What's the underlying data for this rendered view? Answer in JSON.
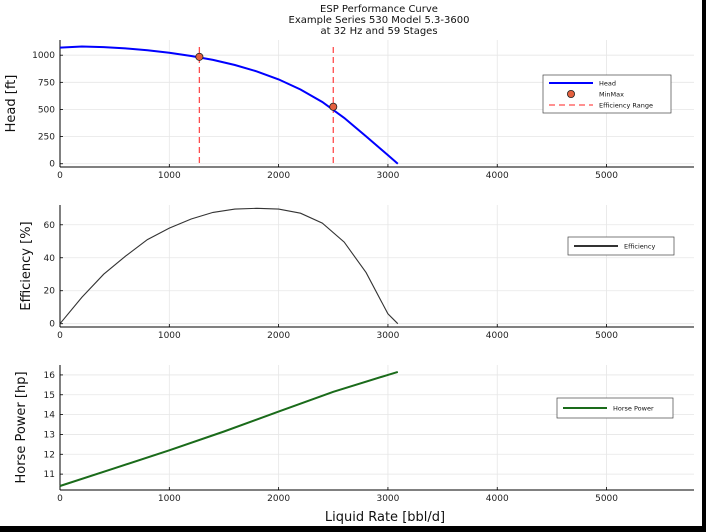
{
  "title_lines": [
    "ESP Performance Curve",
    "Example Series 530 Model 5.3-3600",
    "at 32 Hz and 59 Stages"
  ],
  "chart_data": [
    {
      "type": "line",
      "ylabel": "Head [ft]",
      "xlim": [
        0,
        5800
      ],
      "ylim": [
        -30,
        1140
      ],
      "xticks": [
        0,
        1000,
        2000,
        3000,
        4000,
        5000
      ],
      "yticks": [
        0,
        250,
        500,
        750,
        1000
      ],
      "grid": true,
      "legend": "right",
      "series": [
        {
          "name": "Head",
          "color": "#0000ff",
          "x": [
            0,
            200,
            400,
            600,
            800,
            1000,
            1200,
            1400,
            1600,
            1800,
            2000,
            2200,
            2400,
            2600,
            2800,
            3000,
            3090
          ],
          "y": [
            1070,
            1080,
            1075,
            1063,
            1045,
            1022,
            993,
            957,
            910,
            851,
            777,
            684,
            569,
            422,
            252,
            80,
            0
          ]
        }
      ],
      "points": {
        "name": "MinMax",
        "color": "#e4603e",
        "x": [
          1275,
          2500
        ],
        "y": [
          985,
          525
        ]
      },
      "vlines": {
        "name": "Efficiency Range",
        "color": "#ff4d4d",
        "x": [
          1275,
          2500
        ]
      }
    },
    {
      "type": "line",
      "ylabel": "Efficiency [%]",
      "xlim": [
        0,
        5800
      ],
      "ylim": [
        -2,
        72
      ],
      "xticks": [
        0,
        1000,
        2000,
        3000,
        4000,
        5000
      ],
      "yticks": [
        0,
        20,
        40,
        60
      ],
      "grid": true,
      "legend": "right",
      "series": [
        {
          "name": "Efficiency",
          "color": "#333333",
          "x": [
            0,
            200,
            400,
            600,
            800,
            1000,
            1200,
            1400,
            1600,
            1800,
            2000,
            2200,
            2400,
            2600,
            2800,
            3000,
            3090
          ],
          "y": [
            0,
            16,
            30,
            41,
            51,
            58,
            63.5,
            67.5,
            69.5,
            70,
            69.5,
            67,
            61,
            49.5,
            31,
            6,
            0
          ]
        }
      ]
    },
    {
      "type": "line",
      "ylabel": "Horse Power [hp]",
      "xlabel": "Liquid Rate [bbl/d]",
      "xlim": [
        0,
        5800
      ],
      "ylim": [
        10.2,
        16.5
      ],
      "xticks": [
        0,
        1000,
        2000,
        3000,
        4000,
        5000
      ],
      "yticks": [
        11,
        12,
        13,
        14,
        15,
        16
      ],
      "grid": true,
      "legend": "right",
      "series": [
        {
          "name": "Horse Power",
          "color": "#1a6b1a",
          "x": [
            0,
            500,
            1000,
            1500,
            2000,
            2500,
            3000,
            3090
          ],
          "y": [
            10.4,
            11.3,
            12.2,
            13.15,
            14.15,
            15.15,
            16.0,
            16.15
          ]
        }
      ]
    }
  ]
}
